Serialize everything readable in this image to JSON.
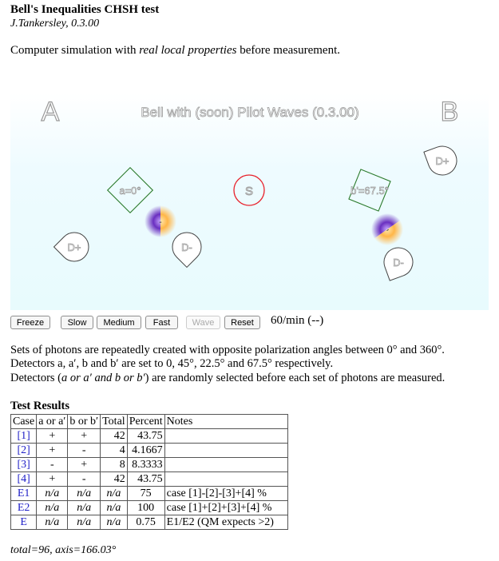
{
  "header": {
    "title": "Bell's Inequalities CHSH test",
    "author": "J.Tankersley, 0.3.00"
  },
  "intro": {
    "prefix": "Computer simulation with ",
    "emphasis": "real local properties",
    "suffix": " before measurement."
  },
  "stage": {
    "label_a": "A",
    "label_b": "B",
    "subtitle": "Bell with (soon) Pilot Waves (0.3.00)",
    "source_label": "S",
    "detector_a_label": "a=0°",
    "detector_b_label": "b'=67.5°",
    "photon_marker": "-",
    "d_plus": "D+",
    "d_minus": "D-",
    "colors": {
      "source_ring": "#e8202a",
      "detector": "#2a7a2a",
      "photon_a": "#ffaa22",
      "photon_b": "#6622aa"
    }
  },
  "controls": {
    "freeze": "Freeze",
    "slow": "Slow",
    "medium": "Medium",
    "fast": "Fast",
    "wave": "Wave",
    "reset": "Reset",
    "rate": "60/min (--)"
  },
  "description": {
    "line1": "Sets of photons are repeatedly created with opposite polarization angles between 0° and 360°.",
    "line2": "Detectors a, a′, b and b′ are set to 0, 45°, 22.5° and 67.5° respectively.",
    "line3_prefix": "Detectors (",
    "line3_em": "a or a′ and b or b′",
    "line3_suffix": ") are randomly selected before each set of photons are measured."
  },
  "results": {
    "title": "Test Results",
    "headers": [
      "Case",
      "a or a′",
      "b or b′",
      "Total",
      "Percent",
      "Notes"
    ],
    "rows": [
      {
        "case": "[1]",
        "a": "+",
        "b": "+",
        "total": "42",
        "percent": "43.75",
        "notes": ""
      },
      {
        "case": "[2]",
        "a": "+",
        "b": "-",
        "total": "4",
        "percent": "4.1667",
        "notes": ""
      },
      {
        "case": "[3]",
        "a": "-",
        "b": "+",
        "total": "8",
        "percent": "8.3333",
        "notes": ""
      },
      {
        "case": "[4]",
        "a": "+",
        "b": "-",
        "total": "42",
        "percent": "43.75",
        "notes": ""
      },
      {
        "case": "E1",
        "a": "n/a",
        "b": "n/a",
        "total": "n/a",
        "percent": "75",
        "notes": "case [1]-[2]-[3]+[4] %"
      },
      {
        "case": "E2",
        "a": "n/a",
        "b": "n/a",
        "total": "n/a",
        "percent": "100",
        "notes": "case [1]+[2]+[3]+[4] %"
      },
      {
        "case": "E",
        "a": "n/a",
        "b": "n/a",
        "total": "n/a",
        "percent": "0.75",
        "notes": "E1/E2 (QM expects >2)"
      }
    ],
    "footer": "total=96, axis=166.03°"
  }
}
